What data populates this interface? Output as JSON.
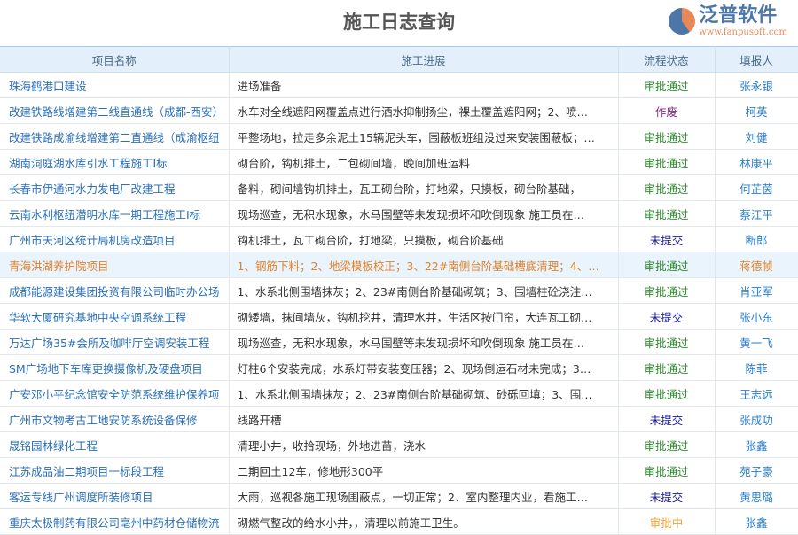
{
  "title": "施工日志查询",
  "columns": [
    "项目名称",
    "施工进展",
    "流程状态",
    "填报人"
  ],
  "status_colors": {
    "审批通过": "#2e8b2e",
    "作废": "#8b2a8b",
    "未提交": "#1a1a9e",
    "审批中": "#f0a030"
  },
  "rows": [
    {
      "name": "珠海鹤港口建设",
      "progress": "进场准备",
      "status": "审批通过",
      "reporter": "张永银"
    },
    {
      "name": "改建铁路线增建第二线直通线（成都-西安）",
      "progress": "水车对全线遮阳网覆盖点进行洒水抑制扬尘，裸土覆盖遮阳网；2、喷…",
      "status": "作废",
      "reporter": "柯英"
    },
    {
      "name": "改建铁路成渝线增建第二直通线（成渝枢纽",
      "progress": "平整场地，拉走多余泥土15辆泥头车，围蔽板班组没过来安装围蔽板；…",
      "status": "审批通过",
      "reporter": "刘健"
    },
    {
      "name": "湖南洞庭湖水库引水工程施工I标",
      "progress": "砌台阶，钩机排土，二包砌间墙，晚间加班运料",
      "status": "审批通过",
      "reporter": "林康平"
    },
    {
      "name": "长春市伊通河水力发电厂改建工程",
      "progress": "备料，砌间墙钩机排土，瓦工砌台阶，打地梁，只摸板，砌台阶基础，",
      "status": "审批通过",
      "reporter": "何芷茵"
    },
    {
      "name": "云南水利枢纽潜明水库一期工程施工I标",
      "progress": "现场巡查，无积水现象，水马围壁等未发现损坏和吹倒现象 施工员在…",
      "status": "审批通过",
      "reporter": "蔡江平"
    },
    {
      "name": "广州市天河区统计局机房改造项目",
      "progress": "钩机排土，瓦工砌台阶，打地梁，只摸板，砌台阶基础",
      "status": "未提交",
      "reporter": "断郎"
    },
    {
      "name": "青海洪湖养护院项目",
      "progress": "1、钢筋下料；2、地梁模板校正；3、22#南侧台阶基础槽底清理；4、…",
      "status": "审批通过",
      "reporter": "蒋德帧",
      "highlight": true
    },
    {
      "name": "成都能源建设集团投资有限公司临时办公场",
      "progress": "1、水系北侧围墙抹灰；2、23#南侧台阶基础砌筑；3、围墙柱砼浇注…",
      "status": "审批通过",
      "reporter": "肖亚军"
    },
    {
      "name": "华软大厦研究基地中央空调系统工程",
      "progress": "砌矮墙，抹间墙灰，钩机挖井，清理水井，生活区按门帘，大连瓦工砌…",
      "status": "未提交",
      "reporter": "张小东"
    },
    {
      "name": "万达广场35#会所及咖啡厅空调安装工程",
      "progress": "现场巡查，无积水现象，水马围壁等未发现损坏和吹倒现象 施工员在…",
      "status": "审批通过",
      "reporter": "黄一飞"
    },
    {
      "name": "SM广场地下车库更换摄像机及硬盘项目",
      "progress": "灯柱6个安装完成，水系灯带安装变压器；2、现场倒运石材未完成；3…",
      "status": "审批通过",
      "reporter": "陈菲"
    },
    {
      "name": "广安邓小平纪念馆安全防范系统维护保养项",
      "progress": "1、水系北侧围墙抹灰；2、23#南侧台阶基础砌筑、砂砾回填；3、围…",
      "status": "审批通过",
      "reporter": "王志远"
    },
    {
      "name": "广州市文物考古工地安防系统设备保修",
      "progress": "线路开槽",
      "status": "未提交",
      "reporter": "张成功"
    },
    {
      "name": "晟铭园林绿化工程",
      "progress": "清理小井，收拾现场，外地进苗，浇水",
      "status": "审批通过",
      "reporter": "张鑫"
    },
    {
      "name": "江苏成品油二期项目一标段工程",
      "progress": "二期回土12车，修地形300平",
      "status": "审批通过",
      "reporter": "苑子豪"
    },
    {
      "name": "客运专线广州调度所装修项目",
      "progress": "大雨，巡视各施工现场围蔽点，一切正常；2、室内整理内业，看施工…",
      "status": "未提交",
      "reporter": "黄思璐"
    },
    {
      "name": "重庆太极制药有限公司亳州中药材仓储物流",
      "progress": "砌燃气整改的给水小井，，清理以前施工卫生。",
      "status": "审批中",
      "reporter": "张鑫"
    }
  ],
  "watermark": {
    "brand": "泛普软件",
    "url": "www.fanpusoft.com"
  }
}
